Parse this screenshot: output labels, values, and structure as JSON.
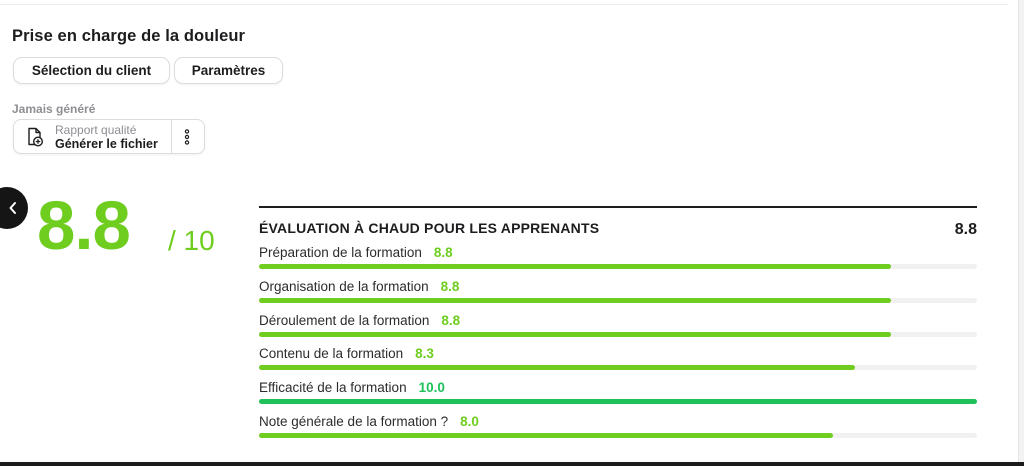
{
  "page": {
    "title": "Prise en charge de la douleur"
  },
  "toolbar": {
    "client_label": "Sélection du client",
    "params_label": "Paramètres"
  },
  "report": {
    "status": "Jamais généré",
    "subtitle": "Rapport qualité",
    "action": "Générer le fichier"
  },
  "score": {
    "value": "8.8",
    "out_of": "/ 10"
  },
  "evaluation": {
    "title": "ÉVALUATION À CHAUD POUR LES APPRENANTS",
    "total": "8.8",
    "max": 10,
    "items": [
      {
        "label": "Préparation de la formation",
        "value": "8.8",
        "score": 8.8,
        "color": "#6fcd1f"
      },
      {
        "label": "Organisation de la formation",
        "value": "8.8",
        "score": 8.8,
        "color": "#6fcd1f"
      },
      {
        "label": "Déroulement de la formation",
        "value": "8.8",
        "score": 8.8,
        "color": "#6fcd1f"
      },
      {
        "label": "Contenu de la formation",
        "value": "8.3",
        "score": 8.3,
        "color": "#6fcd1f"
      },
      {
        "label": "Efficacité de la formation",
        "value": "10.0",
        "score": 10.0,
        "color": "#1fc15b"
      },
      {
        "label": "Note générale de la formation ?",
        "value": "8.0",
        "score": 8.0,
        "color": "#6fcd1f"
      }
    ]
  },
  "colors": {
    "accent": "#6fcd1f",
    "accent_full": "#1fc15b",
    "track": "#f1f1f1"
  },
  "icons": {
    "report": "file-plus-icon",
    "more": "more-vertical-icon",
    "back": "chevron-left-icon"
  }
}
